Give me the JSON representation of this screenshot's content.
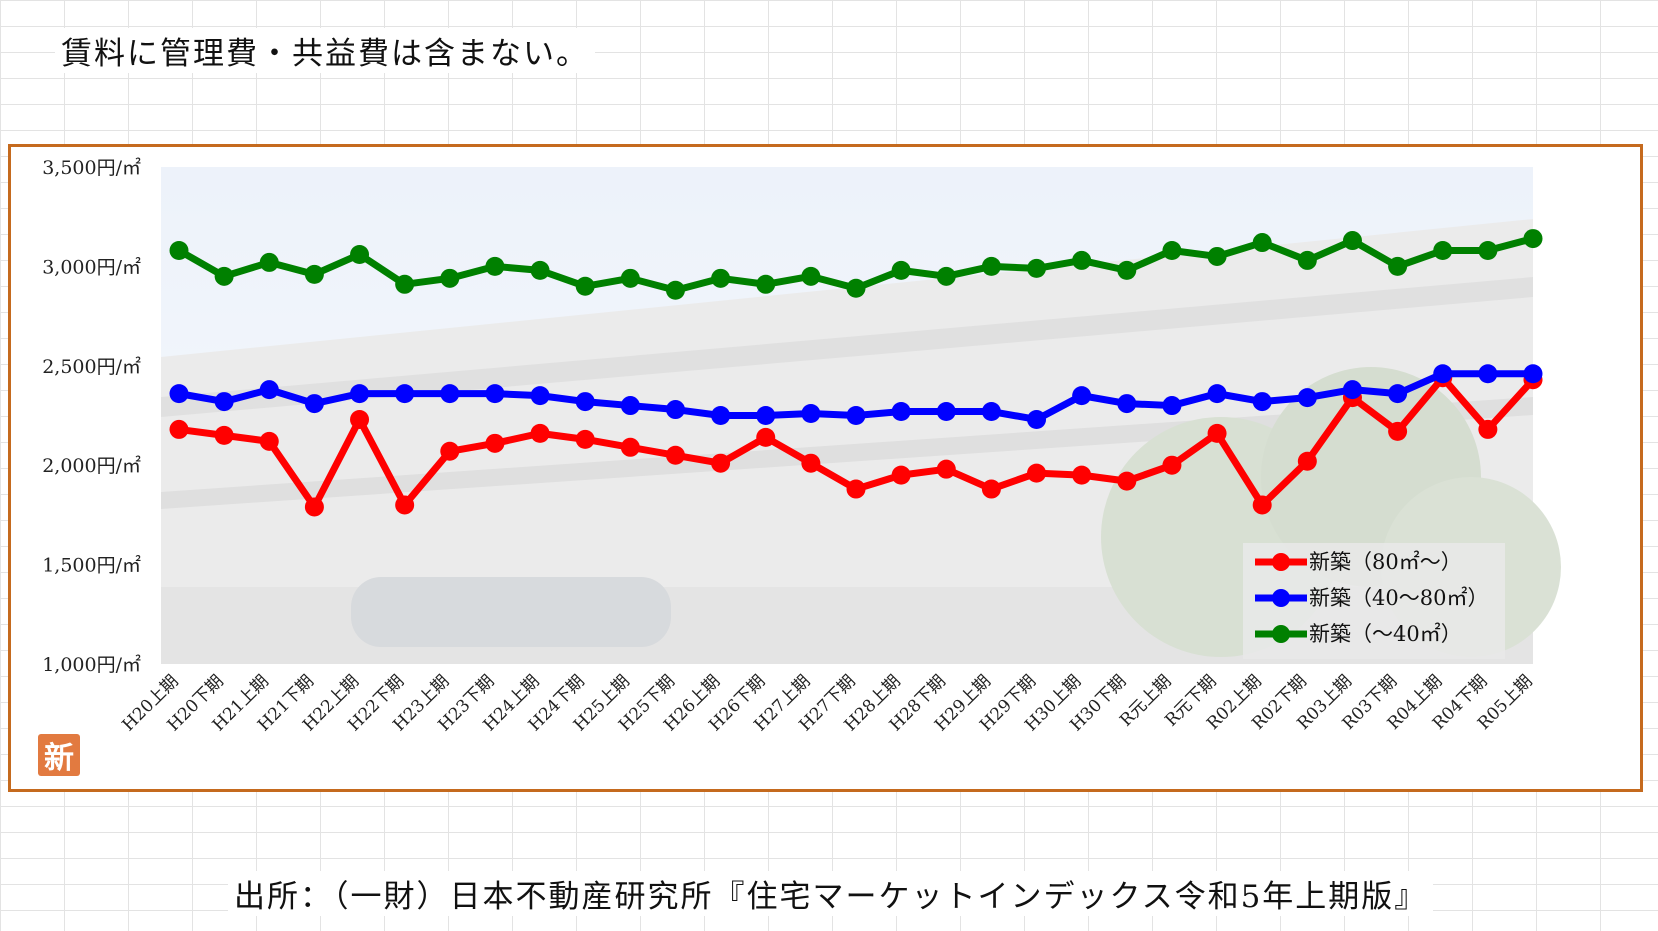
{
  "note": "賃料に管理費・共益費は含まない。",
  "source": "出所：（一財）日本不動産研究所『住宅マーケットインデックス令和5年上期版』",
  "badge": "新",
  "chart_data": {
    "type": "line",
    "title": "",
    "xlabel": "",
    "ylabel": "",
    "ylim": [
      1000,
      3500
    ],
    "yticks": [
      {
        "value": 3500,
        "label": "3,500円/㎡"
      },
      {
        "value": 3000,
        "label": "3,000円/㎡"
      },
      {
        "value": 2500,
        "label": "2,500円/㎡"
      },
      {
        "value": 2000,
        "label": "2,000円/㎡"
      },
      {
        "value": 1500,
        "label": "1,500円/㎡"
      },
      {
        "value": 1000,
        "label": "1,000円/㎡"
      }
    ],
    "categories": [
      "H20上期",
      "H20下期",
      "H21上期",
      "H21下期",
      "H22上期",
      "H22下期",
      "H23上期",
      "H23下期",
      "H24上期",
      "H24下期",
      "H25上期",
      "H25下期",
      "H26上期",
      "H26下期",
      "H27上期",
      "H27下期",
      "H28上期",
      "H28下期",
      "H29上期",
      "H29下期",
      "H30上期",
      "H30下期",
      "R元上期",
      "R元下期",
      "R02上期",
      "R02下期",
      "R03上期",
      "R03下期",
      "R04上期",
      "R04下期",
      "R05上期"
    ],
    "series": [
      {
        "name": "新築（80㎡〜）",
        "color": "#ff0000",
        "values": [
          2180,
          2150,
          2120,
          1790,
          2230,
          1800,
          2070,
          2110,
          2160,
          2130,
          2090,
          2050,
          2010,
          2140,
          2010,
          1880,
          1950,
          1980,
          1880,
          1960,
          1950,
          1920,
          2000,
          2160,
          1800,
          2020,
          2340,
          2170,
          2440,
          2180,
          2430
        ]
      },
      {
        "name": "新築（40〜80㎡）",
        "color": "#0000ff",
        "values": [
          2360,
          2320,
          2380,
          2310,
          2360,
          2360,
          2360,
          2360,
          2350,
          2320,
          2300,
          2280,
          2250,
          2250,
          2260,
          2250,
          2270,
          2270,
          2270,
          2230,
          2350,
          2310,
          2300,
          2360,
          2320,
          2340,
          2380,
          2360,
          2460,
          2460,
          2460
        ]
      },
      {
        "name": "新築（〜40㎡）",
        "color": "#008000",
        "values": [
          3080,
          2950,
          3020,
          2960,
          3060,
          2910,
          2940,
          3000,
          2980,
          2900,
          2940,
          2880,
          2940,
          2910,
          2950,
          2890,
          2980,
          2950,
          3000,
          2990,
          3030,
          2980,
          3080,
          3050,
          3120,
          3030,
          3130,
          3000,
          3080,
          3080,
          3140
        ]
      }
    ],
    "grid": false,
    "legend": "bottom-right"
  }
}
